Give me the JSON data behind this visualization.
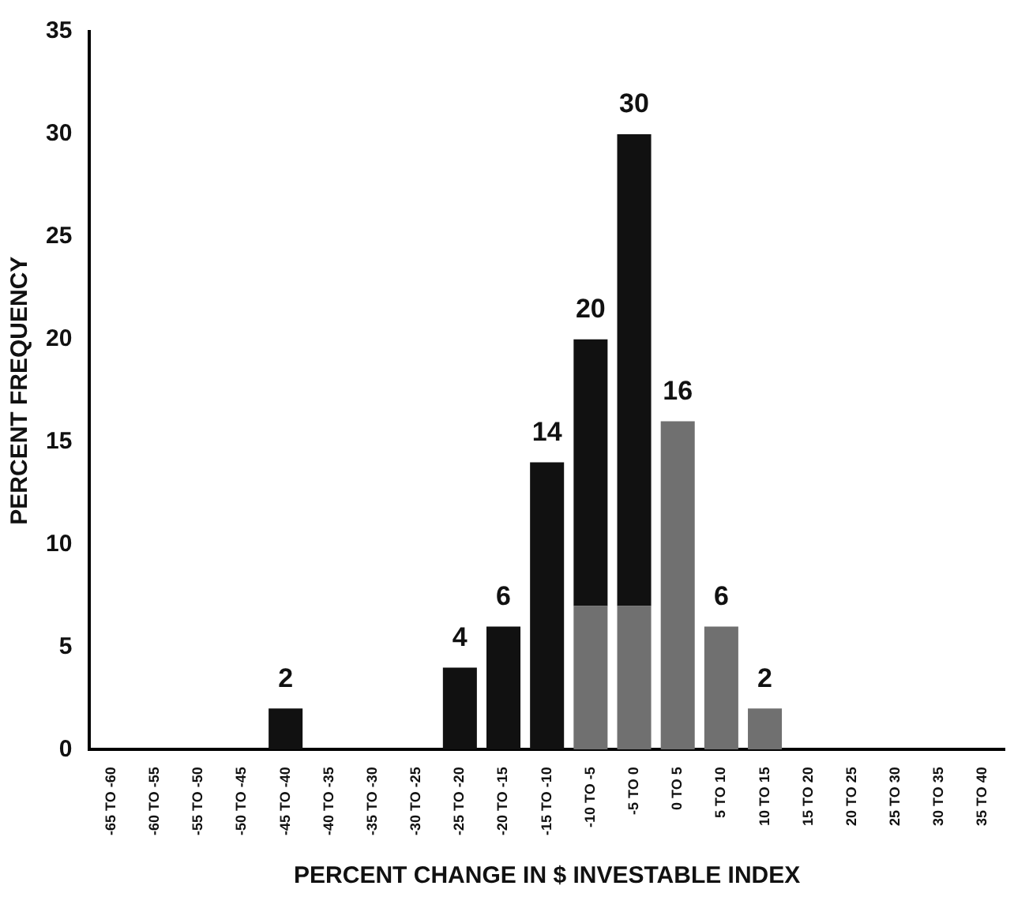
{
  "chart_data": {
    "type": "bar",
    "stacked": true,
    "xlabel": "PERCENT CHANGE IN $ INVESTABLE INDEX",
    "ylabel": "PERCENT FREQUENCY",
    "categories": [
      "-65 TO -60",
      "-60 TO -55",
      "-55 TO -50",
      "-50 TO -45",
      "-45 TO -40",
      "-40 TO -35",
      "-35 TO -30",
      "-30 TO -25",
      "-25 TO -20",
      "-20 TO -15",
      "-15 TO -10",
      "-10 TO -5",
      "-5 TO 0",
      "0 TO 5",
      "5 TO 10",
      "10 TO 15",
      "15 TO 20",
      "20 TO 25",
      "25 TO 30",
      "30 TO 35",
      "35 TO 40"
    ],
    "series": [
      {
        "color": "#707070",
        "values": [
          null,
          null,
          null,
          null,
          null,
          null,
          null,
          null,
          null,
          null,
          null,
          7,
          7,
          16,
          6,
          2,
          null,
          null,
          null,
          null,
          null
        ]
      },
      {
        "color": "#111111",
        "values": [
          null,
          null,
          null,
          null,
          2,
          null,
          null,
          null,
          4,
          6,
          14,
          13,
          23,
          null,
          null,
          null,
          null,
          null,
          null,
          null,
          null
        ]
      }
    ],
    "totals": [
      null,
      null,
      null,
      null,
      "2",
      null,
      null,
      null,
      "4",
      "6",
      "14",
      "20",
      "30",
      "16",
      "6",
      "2",
      null,
      null,
      null,
      null,
      null
    ],
    "ylim": [
      0,
      35
    ],
    "yticks": [
      0,
      5,
      10,
      15,
      20,
      25,
      30,
      35
    ],
    "grid": false,
    "legend": false
  }
}
